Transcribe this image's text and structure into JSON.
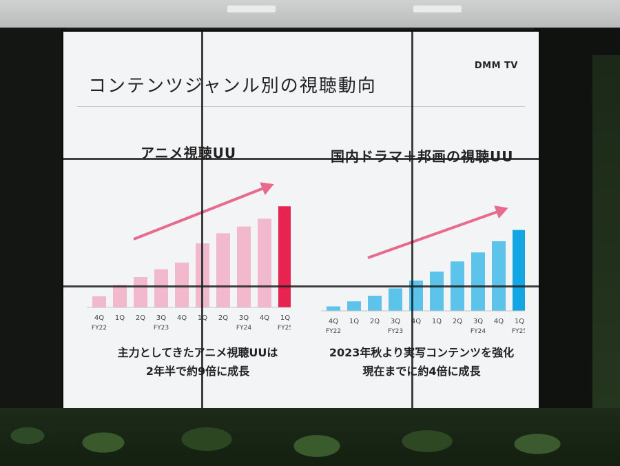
{
  "slide": {
    "title": "コンテンツジャンル別の視聴動向",
    "logo": "DMM TV"
  },
  "charts": [
    {
      "title": "アニメ視聴UU",
      "caption_line1": "主力としてきたアニメ視聴UUは",
      "caption_line2": "2年半で約9倍に成長"
    },
    {
      "title": "国内ドラマ＋邦画の視聴UU",
      "caption_line1": "2023年秋より実写コンテンツを強化",
      "caption_line2": "現在までに約4倍に成長"
    }
  ],
  "chart_data": [
    {
      "type": "bar",
      "title": "アニメ視聴UU",
      "categories": [
        "4Q",
        "1Q",
        "2Q",
        "3Q",
        "4Q",
        "1Q",
        "2Q",
        "3Q",
        "4Q",
        "1Q"
      ],
      "fiscal_year_labels": [
        "FY22",
        "FY23",
        "FY24",
        "FY25"
      ],
      "values": [
        1.0,
        2.0,
        2.7,
        3.4,
        4.0,
        5.7,
        6.6,
        7.2,
        7.9,
        9.0
      ],
      "bar_color": "#f2b8cb",
      "highlight_color": "#e8234f",
      "arrow_color": "#e86a8d"
    },
    {
      "type": "bar",
      "title": "国内ドラマ＋邦画の視聴UU",
      "categories": [
        "4Q",
        "1Q",
        "2Q",
        "3Q",
        "4Q",
        "1Q",
        "2Q",
        "3Q",
        "4Q",
        "1Q"
      ],
      "fiscal_year_labels": [
        "FY22",
        "FY23",
        "FY24",
        "FY25"
      ],
      "values": [
        0.4,
        0.85,
        1.35,
        2.0,
        2.7,
        3.5,
        4.4,
        5.2,
        6.2,
        7.2
      ],
      "bar_color": "#5cc3ea",
      "highlight_color": "#14a6e4",
      "arrow_color": "#e86a8d"
    }
  ]
}
